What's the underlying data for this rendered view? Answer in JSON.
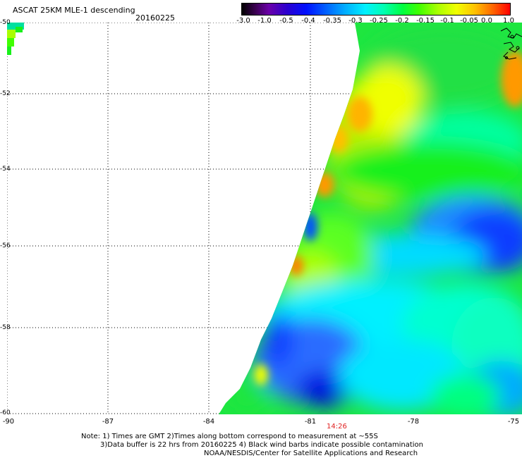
{
  "header": {
    "title": "ASCAT 25KM MLE-1 descending",
    "date": "20160225"
  },
  "colorbar": {
    "labels": [
      "-3.0",
      "-1.0",
      "-0.5",
      "-0.4",
      "-0.35",
      "-0.3",
      "-0.25",
      "-0.2",
      "-0.15",
      "-0.1",
      "-0.05",
      "0.0",
      "1.0"
    ]
  },
  "map": {
    "lat_labels": [
      "-50",
      "-52",
      "-54",
      "-56",
      "-58",
      "-60"
    ],
    "lon_labels": [
      "-90",
      "-87",
      "-84",
      "-81",
      "-78",
      "-75"
    ],
    "time_label": "14:26",
    "colors": {
      "blue": "#1a3cff",
      "cyan": "#00e8ff",
      "green": "#19f01a",
      "yellow": "#f0ff00",
      "orange": "#ff9900",
      "land_outline": "#000000"
    }
  },
  "notes": {
    "line1": "Note: 1) Times are GMT 2)Times along bottom correspond to measurement at ~55S",
    "line2": "3)Data buffer is 22 hrs from 20160225 4) Black wind barbs indicate possible contamination",
    "line3": "NOAA/NESDIS/Center for Satellite Applications and Research"
  }
}
